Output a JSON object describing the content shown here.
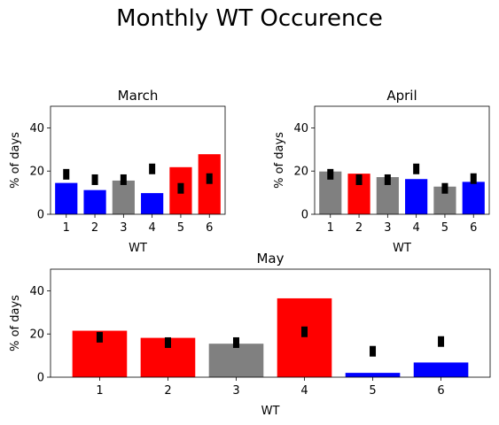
{
  "figure": {
    "title": "Monthly WT Occurence"
  },
  "colors": {
    "red": "#ff0000",
    "blue": "#0000ff",
    "gray": "#808080",
    "marker": "#000000"
  },
  "chart_data": [
    {
      "type": "bar",
      "title": "March",
      "xlabel": "WT",
      "ylabel": "% of days",
      "categories": [
        "1",
        "2",
        "3",
        "4",
        "5",
        "6"
      ],
      "values": [
        14.5,
        11.2,
        15.6,
        9.8,
        21.8,
        27.8
      ],
      "bar_colors": [
        "blue",
        "blue",
        "gray",
        "blue",
        "red",
        "red"
      ],
      "reference_markers": [
        18.5,
        16,
        16,
        21,
        12,
        16.5
      ],
      "ylim": [
        0,
        50
      ],
      "yticks": [
        0,
        20,
        40
      ],
      "grid": false
    },
    {
      "type": "bar",
      "title": "April",
      "xlabel": "WT",
      "ylabel": "% of days",
      "categories": [
        "1",
        "2",
        "3",
        "4",
        "5",
        "6"
      ],
      "values": [
        19.8,
        18.8,
        17.2,
        16.3,
        12.8,
        15
      ],
      "bar_colors": [
        "gray",
        "red",
        "gray",
        "blue",
        "gray",
        "blue"
      ],
      "reference_markers": [
        18.5,
        16,
        16,
        21,
        12,
        16.5
      ],
      "ylim": [
        0,
        50
      ],
      "yticks": [
        0,
        20,
        40
      ],
      "grid": false
    },
    {
      "type": "bar",
      "title": "May",
      "xlabel": "WT",
      "ylabel": "% of days",
      "categories": [
        "1",
        "2",
        "3",
        "4",
        "5",
        "6"
      ],
      "values": [
        21.5,
        18.2,
        15.5,
        36.5,
        2,
        6.8
      ],
      "bar_colors": [
        "red",
        "red",
        "gray",
        "red",
        "blue",
        "blue"
      ],
      "reference_markers": [
        18.5,
        16,
        16,
        21,
        12,
        16.5
      ],
      "ylim": [
        0,
        50
      ],
      "yticks": [
        0,
        20,
        40
      ],
      "grid": false
    }
  ]
}
